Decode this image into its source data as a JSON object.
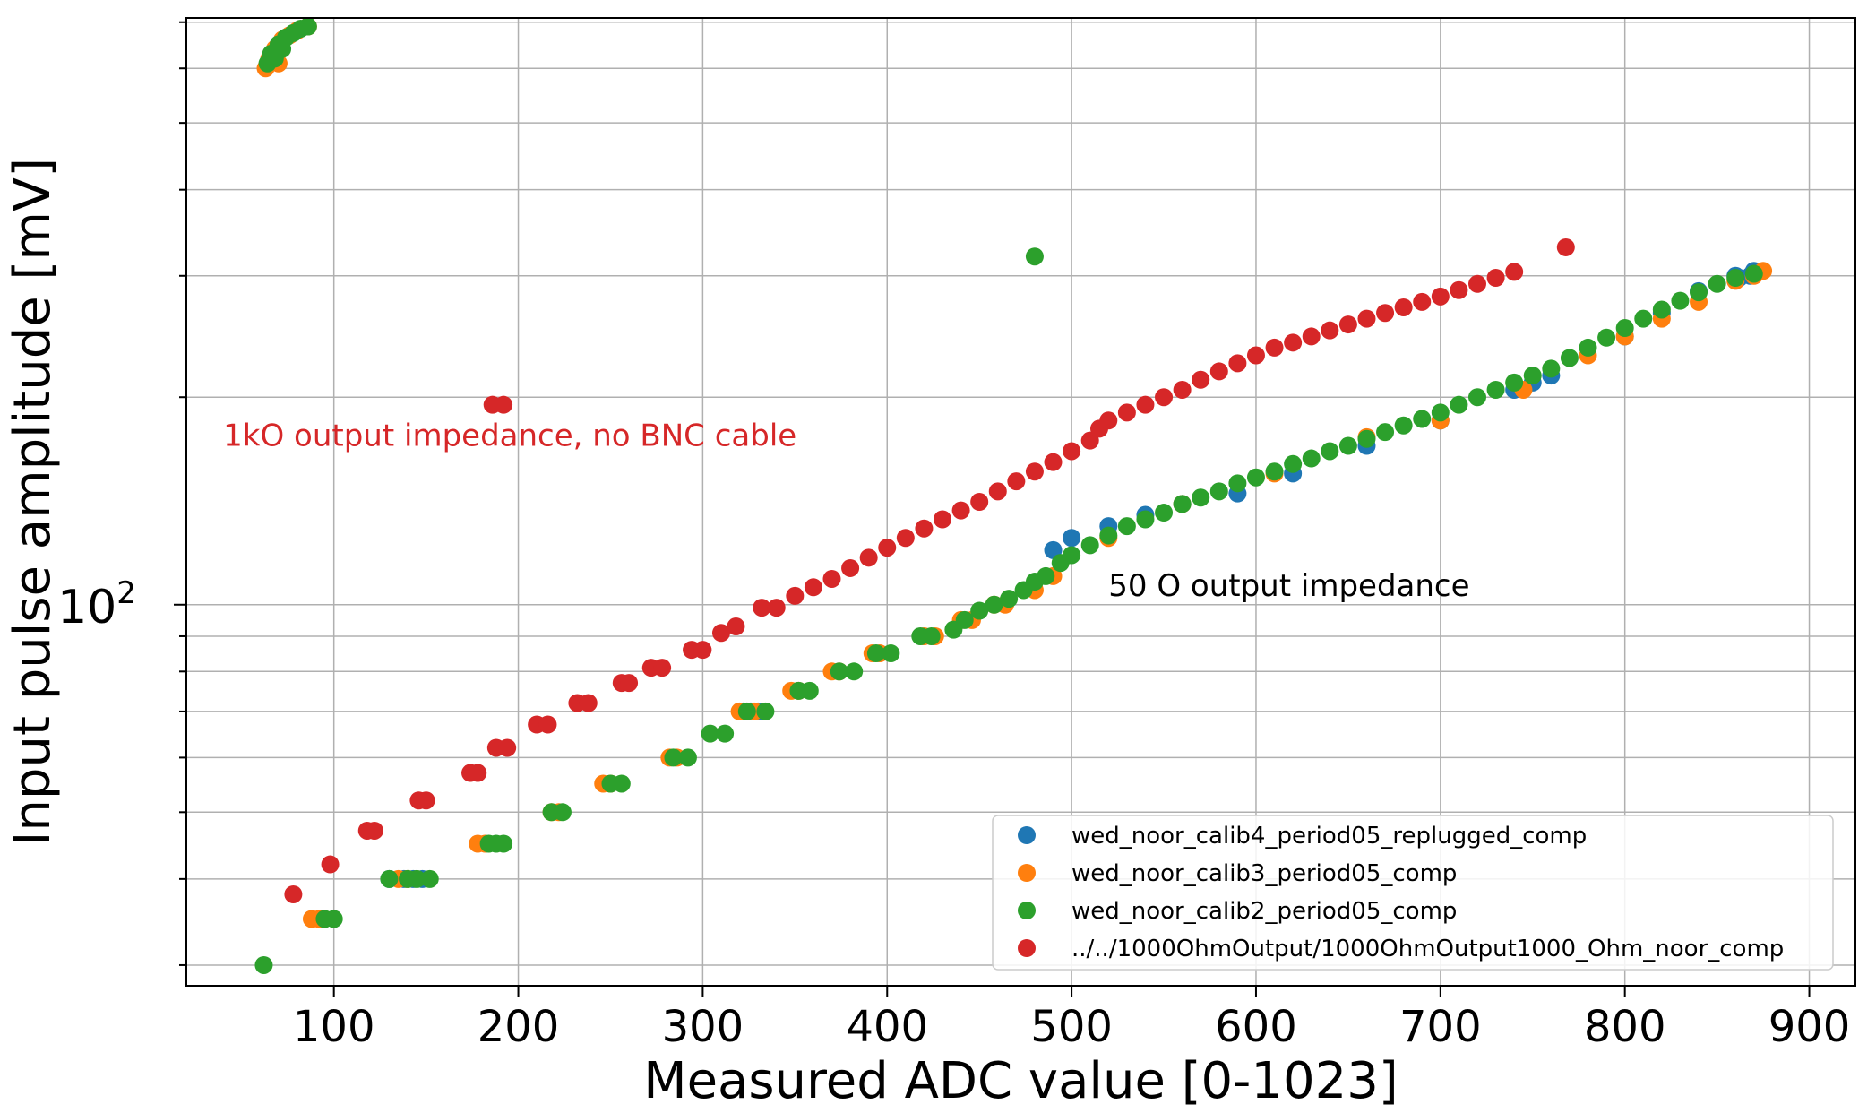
{
  "chart_data": {
    "type": "scatter",
    "title": "",
    "xlabel": "Measured ADC value [0-1023]",
    "ylabel": "Input pulse amplitude [mV]",
    "x_scale": "linear",
    "y_scale": "log",
    "xlim": [
      20,
      925
    ],
    "ylim": [
      28,
      710
    ],
    "x_ticks": [
      100,
      200,
      300,
      400,
      500,
      600,
      700,
      800,
      900
    ],
    "x_tick_labels": [
      "100",
      "200",
      "300",
      "400",
      "500",
      "600",
      "700",
      "800",
      "900"
    ],
    "y_ticks": [
      100
    ],
    "y_tick_labels": [
      "10",
      "2"
    ],
    "grid": true,
    "legend_position": "lower right",
    "annotations": [
      {
        "text": "1kO output impedance, no BNC cable",
        "x": 40,
        "y": 170,
        "color": "#d62728"
      },
      {
        "text": "50 O output impedance",
        "x": 520,
        "y": 103,
        "color": "#000000"
      }
    ],
    "series": [
      {
        "name": "wed_noor_calib4_period05_replugged_comp",
        "color": "#1f77b4",
        "points": [
          [
            130,
            40
          ],
          [
            138,
            40
          ],
          [
            143,
            40
          ],
          [
            148,
            40
          ],
          [
            322,
            70
          ],
          [
            326,
            70
          ],
          [
            330,
            70
          ],
          [
            490,
            120
          ],
          [
            500,
            125
          ],
          [
            520,
            130
          ],
          [
            540,
            135
          ],
          [
            560,
            140
          ],
          [
            590,
            145
          ],
          [
            620,
            155
          ],
          [
            660,
            170
          ],
          [
            700,
            185
          ],
          [
            740,
            205
          ],
          [
            750,
            210
          ],
          [
            760,
            215
          ],
          [
            800,
            245
          ],
          [
            820,
            265
          ],
          [
            840,
            285
          ],
          [
            860,
            300
          ],
          [
            870,
            305
          ],
          [
            868,
            300
          ],
          [
            862,
            298
          ]
        ]
      },
      {
        "name": "wed_noor_calib3_period05_comp",
        "color": "#ff7f0e",
        "points": [
          [
            63,
            600
          ],
          [
            65,
            620
          ],
          [
            68,
            640
          ],
          [
            72,
            660
          ],
          [
            76,
            670
          ],
          [
            80,
            680
          ],
          [
            86,
            690
          ],
          [
            70,
            610
          ],
          [
            135,
            40
          ],
          [
            140,
            40
          ],
          [
            88,
            35
          ],
          [
            92,
            35
          ],
          [
            178,
            45
          ],
          [
            182,
            45
          ],
          [
            218,
            50
          ],
          [
            222,
            50
          ],
          [
            246,
            55
          ],
          [
            250,
            55
          ],
          [
            282,
            60
          ],
          [
            286,
            60
          ],
          [
            320,
            70
          ],
          [
            328,
            70
          ],
          [
            348,
            75
          ],
          [
            352,
            75
          ],
          [
            370,
            80
          ],
          [
            374,
            80
          ],
          [
            392,
            85
          ],
          [
            396,
            85
          ],
          [
            420,
            90
          ],
          [
            426,
            90
          ],
          [
            440,
            95
          ],
          [
            446,
            95
          ],
          [
            458,
            100
          ],
          [
            464,
            100
          ],
          [
            480,
            105
          ],
          [
            490,
            110
          ],
          [
            520,
            125
          ],
          [
            560,
            140
          ],
          [
            610,
            155
          ],
          [
            660,
            175
          ],
          [
            700,
            185
          ],
          [
            745,
            205
          ],
          [
            780,
            230
          ],
          [
            800,
            245
          ],
          [
            820,
            260
          ],
          [
            840,
            275
          ],
          [
            860,
            295
          ],
          [
            870,
            300
          ],
          [
            875,
            305
          ]
        ]
      },
      {
        "name": "wed_noor_calib2_period05_comp",
        "color": "#2ca02c",
        "points": [
          [
            62,
            30
          ],
          [
            95,
            35
          ],
          [
            100,
            35
          ],
          [
            130,
            40
          ],
          [
            140,
            40
          ],
          [
            145,
            40
          ],
          [
            152,
            40
          ],
          [
            184,
            45
          ],
          [
            188,
            45
          ],
          [
            192,
            45
          ],
          [
            218,
            50
          ],
          [
            224,
            50
          ],
          [
            250,
            55
          ],
          [
            256,
            55
          ],
          [
            284,
            60
          ],
          [
            292,
            60
          ],
          [
            304,
            65
          ],
          [
            312,
            65
          ],
          [
            324,
            70
          ],
          [
            334,
            70
          ],
          [
            352,
            75
          ],
          [
            358,
            75
          ],
          [
            374,
            80
          ],
          [
            382,
            80
          ],
          [
            394,
            85
          ],
          [
            402,
            85
          ],
          [
            418,
            90
          ],
          [
            424,
            90
          ],
          [
            436,
            92
          ],
          [
            442,
            95
          ],
          [
            450,
            98
          ],
          [
            458,
            100
          ],
          [
            466,
            102
          ],
          [
            474,
            105
          ],
          [
            480,
            108
          ],
          [
            486,
            110
          ],
          [
            494,
            115
          ],
          [
            500,
            118
          ],
          [
            510,
            122
          ],
          [
            520,
            126
          ],
          [
            530,
            130
          ],
          [
            540,
            133
          ],
          [
            550,
            136
          ],
          [
            560,
            140
          ],
          [
            570,
            143
          ],
          [
            580,
            146
          ],
          [
            590,
            150
          ],
          [
            600,
            153
          ],
          [
            610,
            156
          ],
          [
            620,
            160
          ],
          [
            630,
            163
          ],
          [
            640,
            167
          ],
          [
            650,
            170
          ],
          [
            660,
            174
          ],
          [
            670,
            178
          ],
          [
            680,
            182
          ],
          [
            690,
            186
          ],
          [
            700,
            190
          ],
          [
            710,
            195
          ],
          [
            720,
            200
          ],
          [
            730,
            205
          ],
          [
            740,
            210
          ],
          [
            750,
            215
          ],
          [
            760,
            220
          ],
          [
            770,
            228
          ],
          [
            780,
            236
          ],
          [
            790,
            244
          ],
          [
            800,
            252
          ],
          [
            810,
            260
          ],
          [
            820,
            268
          ],
          [
            830,
            276
          ],
          [
            840,
            284
          ],
          [
            850,
            292
          ],
          [
            860,
            298
          ],
          [
            870,
            302
          ],
          [
            480,
            320
          ],
          [
            64,
            610
          ],
          [
            66,
            630
          ],
          [
            70,
            650
          ],
          [
            74,
            665
          ],
          [
            78,
            675
          ],
          [
            82,
            685
          ],
          [
            86,
            690
          ],
          [
            68,
            620
          ],
          [
            72,
            640
          ]
        ]
      },
      {
        "name": "../../1000OhmOutput/1000OhmOutput1000_Ohm_noor_comp",
        "color": "#d62728",
        "points": [
          [
            78,
            38
          ],
          [
            98,
            42
          ],
          [
            118,
            47
          ],
          [
            122,
            47
          ],
          [
            146,
            52
          ],
          [
            150,
            52
          ],
          [
            174,
            57
          ],
          [
            178,
            57
          ],
          [
            188,
            62
          ],
          [
            194,
            62
          ],
          [
            210,
            67
          ],
          [
            216,
            67
          ],
          [
            232,
            72
          ],
          [
            238,
            72
          ],
          [
            256,
            77
          ],
          [
            260,
            77
          ],
          [
            272,
            81
          ],
          [
            278,
            81
          ],
          [
            294,
            86
          ],
          [
            300,
            86
          ],
          [
            310,
            91
          ],
          [
            318,
            93
          ],
          [
            332,
            99
          ],
          [
            340,
            99
          ],
          [
            350,
            103
          ],
          [
            360,
            106
          ],
          [
            370,
            109
          ],
          [
            380,
            113
          ],
          [
            390,
            117
          ],
          [
            400,
            121
          ],
          [
            410,
            125
          ],
          [
            420,
            129
          ],
          [
            430,
            133
          ],
          [
            440,
            137
          ],
          [
            450,
            141
          ],
          [
            460,
            146
          ],
          [
            470,
            151
          ],
          [
            480,
            156
          ],
          [
            490,
            161
          ],
          [
            500,
            167
          ],
          [
            510,
            173
          ],
          [
            515,
            180
          ],
          [
            520,
            185
          ],
          [
            530,
            190
          ],
          [
            540,
            195
          ],
          [
            550,
            200
          ],
          [
            560,
            205
          ],
          [
            570,
            212
          ],
          [
            580,
            218
          ],
          [
            590,
            224
          ],
          [
            600,
            230
          ],
          [
            610,
            236
          ],
          [
            620,
            240
          ],
          [
            630,
            245
          ],
          [
            640,
            250
          ],
          [
            650,
            255
          ],
          [
            660,
            260
          ],
          [
            670,
            265
          ],
          [
            680,
            270
          ],
          [
            690,
            275
          ],
          [
            700,
            280
          ],
          [
            710,
            286
          ],
          [
            720,
            292
          ],
          [
            730,
            298
          ],
          [
            740,
            304
          ],
          [
            768,
            330
          ],
          [
            186,
            195
          ],
          [
            192,
            195
          ]
        ]
      }
    ]
  }
}
